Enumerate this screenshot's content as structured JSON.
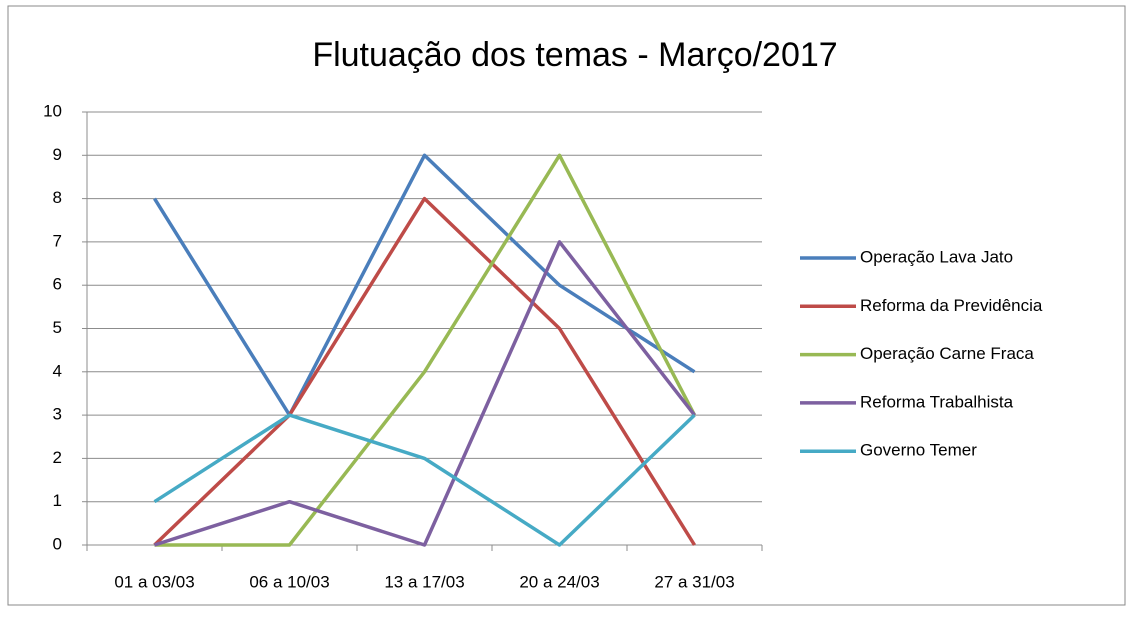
{
  "chart_data": {
    "type": "line",
    "title": "Flutuação dos temas - Março/2017",
    "categories": [
      "01 a 03/03",
      "06 a 10/03",
      "13 a 17/03",
      "20 a 24/03",
      "27 a 31/03"
    ],
    "series": [
      {
        "name": "Operação Lava Jato",
        "color": "#4a7ebb",
        "values": [
          8,
          3,
          9,
          6,
          4
        ]
      },
      {
        "name": "Reforma da Previdência",
        "color": "#be4b48",
        "values": [
          0,
          3,
          8,
          5,
          0
        ]
      },
      {
        "name": "Operação Carne Fraca",
        "color": "#98b954",
        "values": [
          0,
          0,
          4,
          9,
          3
        ]
      },
      {
        "name": "Reforma Trabalhista",
        "color": "#7d60a0",
        "values": [
          0,
          1,
          0,
          7,
          3
        ]
      },
      {
        "name": "Governo Temer",
        "color": "#46aac5",
        "values": [
          1,
          3,
          2,
          0,
          3
        ]
      }
    ],
    "ylim": [
      0,
      10
    ],
    "yticks": [
      0,
      1,
      2,
      3,
      4,
      5,
      6,
      7,
      8,
      9,
      10
    ],
    "grid": true,
    "legend": "right"
  }
}
